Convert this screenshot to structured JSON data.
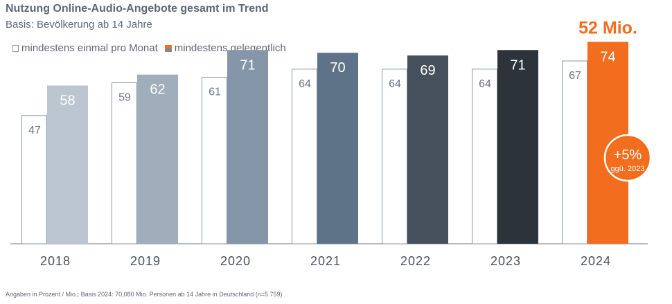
{
  "header": {
    "title": "Nutzung Online-Audio-Angebote gesamt im Trend",
    "subtitle": "Basis: Bevölkerung ab 14 Jahre"
  },
  "legend": {
    "outline_label": "mindestens einmal pro Monat",
    "filled_label": "mindestens gelegentlich"
  },
  "chart_data": {
    "type": "bar",
    "categories": [
      "2018",
      "2019",
      "2020",
      "2021",
      "2022",
      "2023",
      "2024"
    ],
    "series": [
      {
        "name": "mindestens einmal pro Monat",
        "values": [
          47,
          59,
          61,
          64,
          64,
          64,
          67
        ]
      },
      {
        "name": "mindestens gelegentlich",
        "values": [
          58,
          62,
          71,
          70,
          69,
          71,
          74
        ]
      }
    ],
    "bar_colors": [
      "#bcc6d0",
      "#a0adbb",
      "#8596a8",
      "#5f7388",
      "#45505c",
      "#2c333b",
      "#f26d1e"
    ],
    "ylim": [
      0,
      80
    ],
    "grid": false,
    "legend_position": "top-left"
  },
  "annotations": {
    "headline_value": "52 Mio.",
    "badge_main": "+5%",
    "badge_sub": "ggü. 2023",
    "accent_color": "#f26d1e"
  },
  "footnote": "Angaben in Prozent / Mio.; Basis 2024: 70,080 Mio. Personen ab 14 Jahre in Deutschland (n=5.759)"
}
